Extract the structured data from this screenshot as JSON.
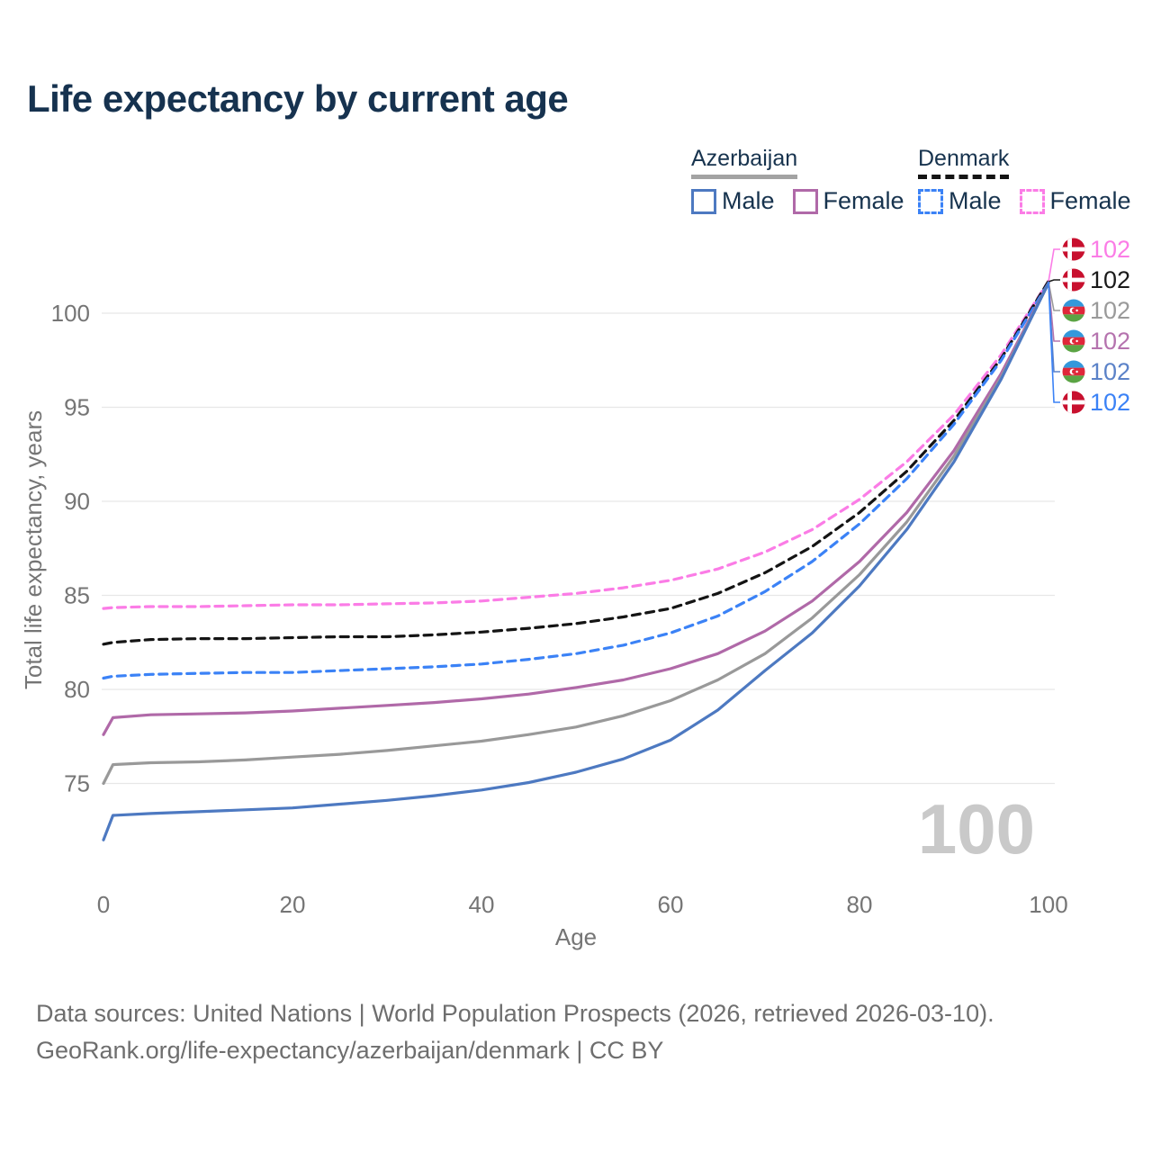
{
  "title": "Life expectancy by current age",
  "legend": {
    "groups": [
      {
        "name": "Azerbaijan",
        "style": "solid",
        "underline_color": "#a3a3a3",
        "items": [
          {
            "label": "Male",
            "color": "#4d79c1",
            "dash": false
          },
          {
            "label": "Female",
            "color": "#b069a8",
            "dash": false
          }
        ]
      },
      {
        "name": "Denmark",
        "style": "dashed",
        "underline_color": "#141414",
        "items": [
          {
            "label": "Male",
            "color": "#3b82f6",
            "dash": true
          },
          {
            "label": "Female",
            "color": "#fb7ce6",
            "dash": true
          }
        ]
      }
    ]
  },
  "chart_data": {
    "type": "line",
    "title": "Life expectancy by current age",
    "xlabel": "Age",
    "ylabel": "Total life expectancy, years",
    "x_ticks": [
      0,
      20,
      40,
      60,
      80,
      100
    ],
    "y_ticks": [
      75,
      80,
      85,
      90,
      95,
      100
    ],
    "xlim": [
      0,
      100
    ],
    "ylim": [
      71.5,
      102.5
    ],
    "grid": "horizontal",
    "age_indicator": "100",
    "ages": [
      0,
      1,
      5,
      10,
      15,
      20,
      25,
      30,
      35,
      40,
      45,
      50,
      55,
      60,
      65,
      70,
      75,
      80,
      85,
      90,
      95,
      100
    ],
    "series": [
      {
        "name": "Denmark Female",
        "color": "#fb7ce6",
        "dash": true,
        "values": [
          84.3,
          84.35,
          84.4,
          84.4,
          84.45,
          84.5,
          84.5,
          84.55,
          84.6,
          84.7,
          84.9,
          85.1,
          85.4,
          85.8,
          86.4,
          87.3,
          88.5,
          90.1,
          92.1,
          94.6,
          97.8,
          101.7
        ]
      },
      {
        "name": "Denmark Both sexes",
        "color": "#141414",
        "dash": true,
        "values": [
          82.4,
          82.5,
          82.65,
          82.7,
          82.7,
          82.75,
          82.8,
          82.8,
          82.9,
          83.05,
          83.25,
          83.5,
          83.85,
          84.3,
          85.1,
          86.2,
          87.6,
          89.4,
          91.6,
          94.3,
          97.6,
          101.7
        ]
      },
      {
        "name": "Denmark Male",
        "color": "#3b82f6",
        "dash": true,
        "values": [
          80.6,
          80.7,
          80.8,
          80.85,
          80.9,
          80.9,
          81.0,
          81.1,
          81.2,
          81.35,
          81.6,
          81.9,
          82.35,
          83.0,
          83.9,
          85.2,
          86.8,
          88.8,
          91.2,
          94.1,
          97.5,
          101.6
        ]
      },
      {
        "name": "Azerbaijan Female",
        "color": "#b069a8",
        "dash": false,
        "values": [
          77.6,
          78.5,
          78.65,
          78.7,
          78.75,
          78.85,
          79.0,
          79.15,
          79.3,
          79.5,
          79.75,
          80.1,
          80.5,
          81.1,
          81.9,
          83.1,
          84.7,
          86.8,
          89.4,
          92.7,
          96.8,
          101.6
        ]
      },
      {
        "name": "Azerbaijan Both sexes",
        "color": "#999999",
        "dash": false,
        "values": [
          75.0,
          76.0,
          76.1,
          76.15,
          76.25,
          76.4,
          76.55,
          76.75,
          77.0,
          77.25,
          77.6,
          78.0,
          78.6,
          79.4,
          80.5,
          81.9,
          83.8,
          86.1,
          88.9,
          92.4,
          96.6,
          101.6
        ]
      },
      {
        "name": "Azerbaijan Male",
        "color": "#4d79c1",
        "dash": false,
        "values": [
          72.0,
          73.3,
          73.4,
          73.5,
          73.6,
          73.7,
          73.9,
          74.1,
          74.35,
          74.65,
          75.05,
          75.6,
          76.3,
          77.3,
          78.9,
          81.0,
          83.0,
          85.5,
          88.5,
          92.1,
          96.5,
          101.6
        ]
      }
    ],
    "end_labels": [
      {
        "flag": "denmark",
        "value": "102",
        "color": "#fb7ce6"
      },
      {
        "flag": "denmark",
        "value": "102",
        "color": "#1a1a1a"
      },
      {
        "flag": "azerbaijan",
        "value": "102",
        "color": "#9a9a9a"
      },
      {
        "flag": "azerbaijan",
        "value": "102",
        "color": "#b573ae"
      },
      {
        "flag": "azerbaijan",
        "value": "102",
        "color": "#5b82c8"
      },
      {
        "flag": "denmark",
        "value": "102",
        "color": "#3b82f6"
      }
    ]
  },
  "footer": {
    "line1": "Data sources: United Nations | World Population Prospects (2026, retrieved 2026-03-10).",
    "line2": "GeoRank.org/life-expectancy/azerbaijan/denmark | CC BY"
  }
}
